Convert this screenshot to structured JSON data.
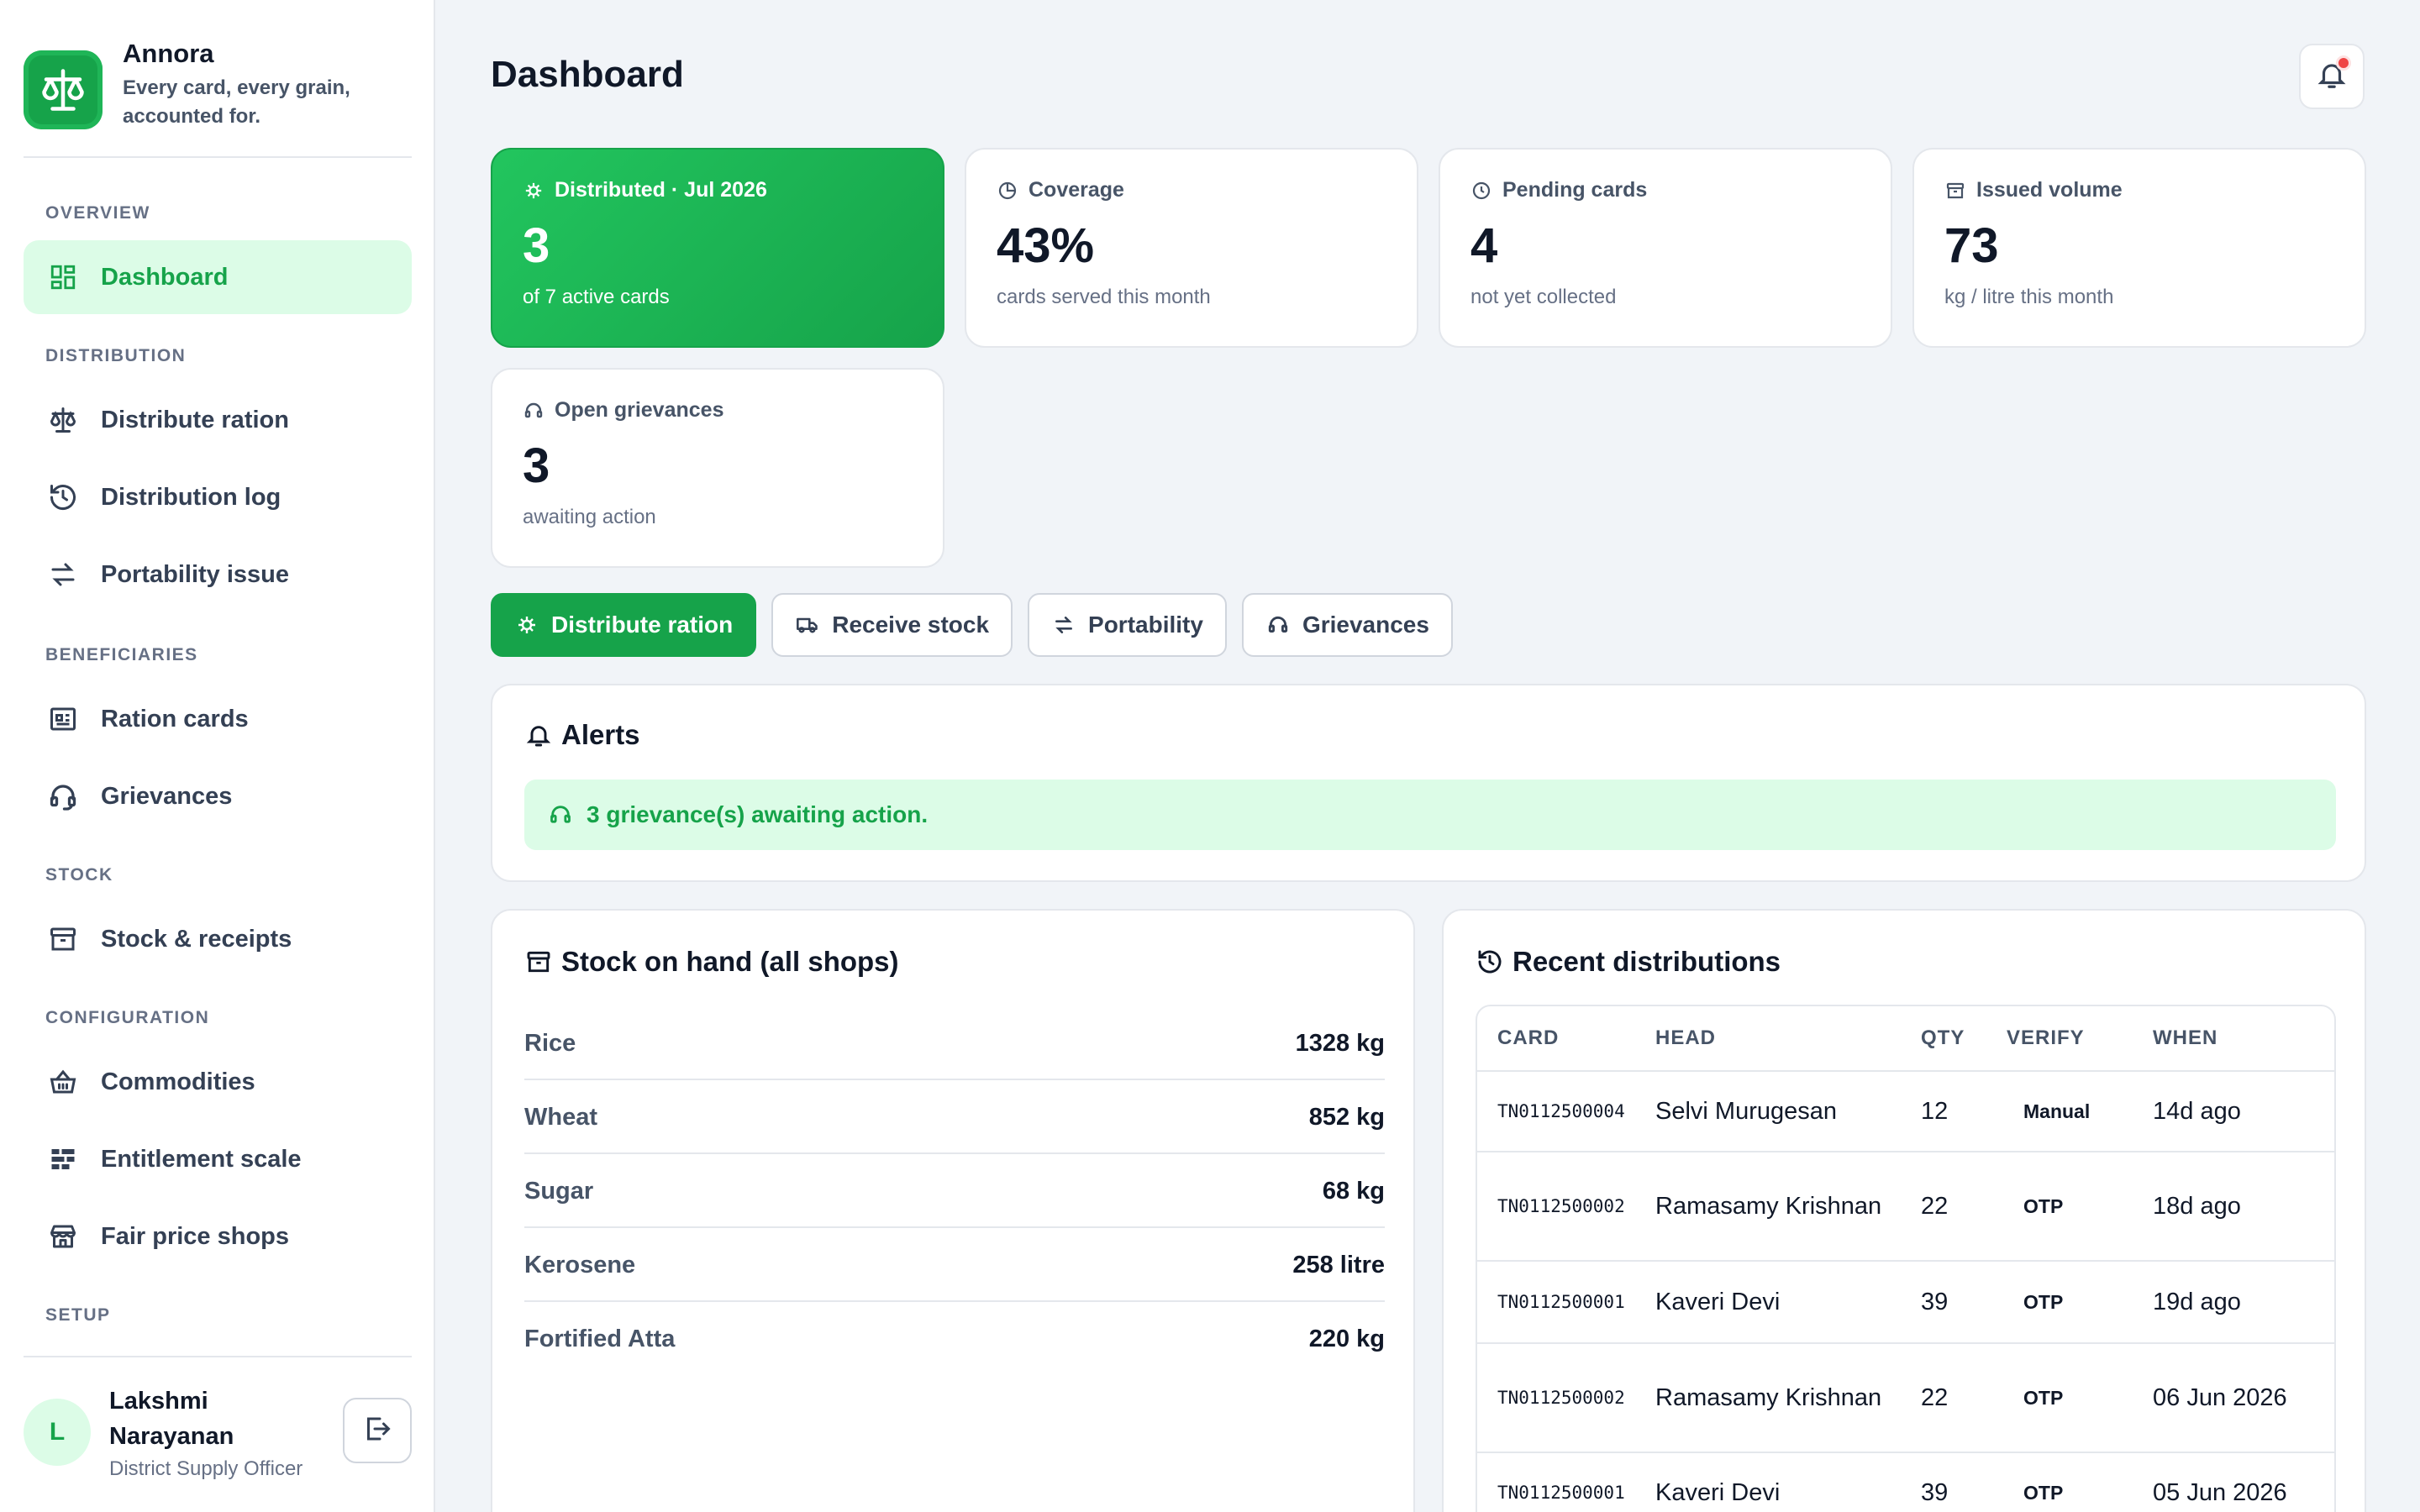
{
  "app": {
    "name": "Annora",
    "tagline": "Every card, every grain, accounted for."
  },
  "sidebar": {
    "sections": {
      "overview": "OVERVIEW",
      "distribution": "DISTRIBUTION",
      "beneficiaries": "BENEFICIARIES",
      "stock": "STOCK",
      "configuration": "CONFIGURATION",
      "setup": "SETUP"
    },
    "items": {
      "dashboard": "Dashboard",
      "distribute": "Distribute ration",
      "log": "Distribution log",
      "portability": "Portability issue",
      "ration_cards": "Ration cards",
      "grievances": "Grievances",
      "stock": "Stock & receipts",
      "commodities": "Commodities",
      "entitlement": "Entitlement scale",
      "shops": "Fair price shops"
    },
    "user": {
      "initial": "L",
      "name": "Lakshmi Narayanan",
      "role": "District Supply Officer"
    }
  },
  "page": {
    "title": "Dashboard"
  },
  "stats": {
    "distributed": {
      "label": "Distributed · Jul 2026",
      "value": "3",
      "note": "of 7 active cards"
    },
    "coverage": {
      "label": "Coverage",
      "value": "43%",
      "note": "cards served this month"
    },
    "pending": {
      "label": "Pending cards",
      "value": "4",
      "note": "not yet collected"
    },
    "volume": {
      "label": "Issued volume",
      "value": "73",
      "note": "kg / litre this month"
    },
    "grievances": {
      "label": "Open grievances",
      "value": "3",
      "note": "awaiting action"
    }
  },
  "actions": {
    "distribute": "Distribute ration",
    "receive": "Receive stock",
    "portability": "Portability",
    "grievances": "Grievances"
  },
  "alerts": {
    "title": "Alerts",
    "message": "3 grievance(s) awaiting action."
  },
  "stock": {
    "title": "Stock on hand (all shops)",
    "rows": [
      {
        "name": "Rice",
        "value": "1328 kg"
      },
      {
        "name": "Wheat",
        "value": "852 kg"
      },
      {
        "name": "Sugar",
        "value": "68 kg"
      },
      {
        "name": "Kerosene",
        "value": "258 litre"
      },
      {
        "name": "Fortified Atta",
        "value": "220 kg"
      }
    ]
  },
  "recent": {
    "title": "Recent distributions",
    "columns": {
      "card": "CARD",
      "head": "HEAD",
      "qty": "QTY",
      "verify": "VERIFY",
      "when": "WHEN"
    },
    "rows": [
      {
        "card": "TN0112500004",
        "head": "Selvi Murugesan",
        "qty": "12",
        "verify": "Manual",
        "when": "14d ago"
      },
      {
        "card": "TN0112500002",
        "head": "Ramasamy Krishnan",
        "qty": "22",
        "verify": "OTP",
        "when": "18d ago"
      },
      {
        "card": "TN0112500001",
        "head": "Kaveri Devi",
        "qty": "39",
        "verify": "OTP",
        "when": "19d ago"
      },
      {
        "card": "TN0112500002",
        "head": "Ramasamy Krishnan",
        "qty": "22",
        "verify": "OTP",
        "when": "06 Jun 2026"
      },
      {
        "card": "TN0112500001",
        "head": "Kaveri Devi",
        "qty": "39",
        "verify": "OTP",
        "when": "05 Jun 2026"
      }
    ]
  },
  "colors": {
    "accent": "#16a34a",
    "accent_soft": "#dcfce7",
    "alert_dot": "#ef4444"
  }
}
